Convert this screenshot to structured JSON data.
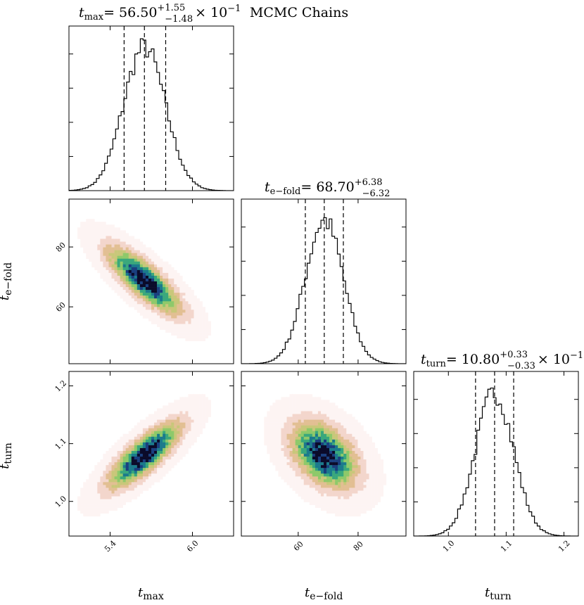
{
  "figure_title": "MCMC Chains",
  "parameters": [
    {
      "symbol": "t",
      "subscript": "max",
      "label": "t_max",
      "title": {
        "prefix": "= 56.50",
        "plus": "+1.55",
        "minus": "−1.48",
        "suffix": "× 10",
        "exponent": "−1"
      }
    },
    {
      "symbol": "t",
      "subscript": "e−fold",
      "label": "t_e−fold",
      "title": {
        "prefix": "= 68.70",
        "plus": "+6.38",
        "minus": "−6.32",
        "suffix": "",
        "exponent": ""
      }
    },
    {
      "symbol": "t",
      "subscript": "turn",
      "label": "t_turn",
      "title": {
        "prefix": "= 10.80",
        "plus": "+0.33",
        "minus": "−0.33",
        "suffix": "× 10",
        "exponent": "−1"
      }
    }
  ],
  "chart_data": {
    "type": "heatmap",
    "title": "MCMC Chains",
    "kind": "corner_plot",
    "parameters": [
      "t_max",
      "t_e-fold",
      "t_turn"
    ],
    "ranges": {
      "t_max": [
        5.1,
        6.3
      ],
      "t_e-fold": [
        41,
        96
      ],
      "t_turn": [
        0.94,
        1.225
      ]
    },
    "ticks": {
      "t_max": [
        "5.4",
        "6.0"
      ],
      "t_e-fold": [
        "60",
        "80"
      ],
      "t_turn": [
        "1.0",
        "1.1",
        "1.2"
      ]
    },
    "marginals": [
      {
        "parameter": "t_max",
        "median": 5.65,
        "q16": 5.502,
        "q84": 5.805,
        "sd": 0.152
      },
      {
        "parameter": "t_e-fold",
        "median": 68.7,
        "q16": 62.38,
        "q84": 75.08,
        "sd": 6.35
      },
      {
        "parameter": "t_turn",
        "median": 1.08,
        "q16": 1.047,
        "q84": 1.113,
        "sd": 0.033
      }
    ],
    "correlations": [
      {
        "pair": [
          "t_max",
          "t_e-fold"
        ],
        "rho": -0.8
      },
      {
        "pair": [
          "t_max",
          "t_turn"
        ],
        "rho": 0.8
      },
      {
        "pair": [
          "t_e-fold",
          "t_turn"
        ],
        "rho": -0.4
      }
    ],
    "colors": {
      "heatmap": [
        "#fdf4f3",
        "#f3d6cc",
        "#e2bf93",
        "#c9c77a",
        "#8ec96a",
        "#3aa87c",
        "#1b7a8c",
        "#1a3f7f",
        "#0b0b2a"
      ],
      "lines": "#000000"
    },
    "grid": false
  }
}
